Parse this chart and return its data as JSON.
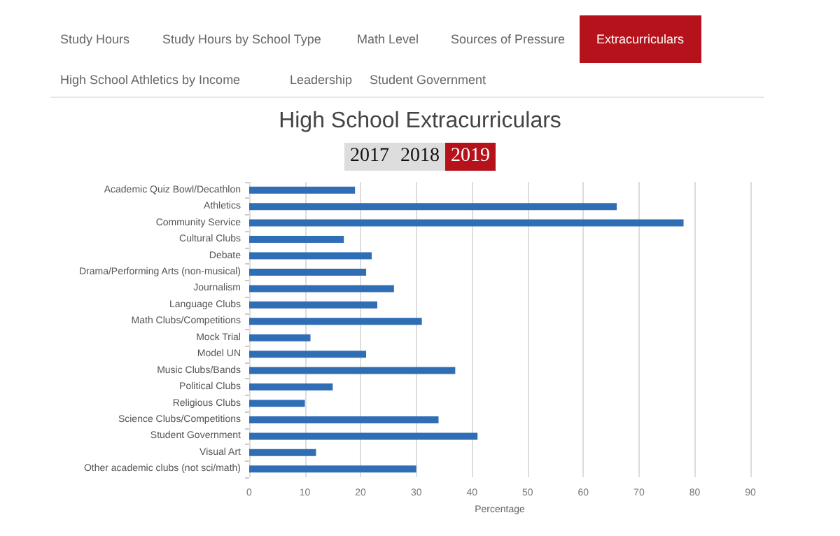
{
  "chart_data": {
    "type": "bar",
    "orientation": "horizontal",
    "title": "High School Extracurriculars",
    "xlabel": "Percentage",
    "annotations": [
      "Study Hours",
      "Study Hours by School Type",
      "Math Level",
      "Sources of Pressure",
      "Extracurriculars",
      "High School Athletics by Income",
      "Leadership",
      "Student Government",
      "2017",
      "2018",
      "2019"
    ],
    "categories": [
      "Academic Quiz Bowl/Decathlon",
      "Athletics",
      "Community Service",
      "Cultural Clubs",
      "Debate",
      "Drama/Performing Arts (non-musical)",
      "Journalism",
      "Language Clubs",
      "Math Clubs/Competitions",
      "Mock Trial",
      "Model UN",
      "Music Clubs/Bands",
      "Political Clubs",
      "Religious Clubs",
      "Science Clubs/Competitions",
      "Student Government",
      "Visual Art",
      "Other academic clubs (not sci/math)"
    ],
    "values": [
      19,
      66,
      78,
      17,
      22,
      21,
      26,
      23,
      31,
      11,
      21,
      37,
      15,
      10,
      34,
      41,
      12,
      30
    ],
    "color": "#2f6db5",
    "xlim": [
      0,
      90
    ],
    "xticks": [
      0,
      10,
      20,
      30,
      40,
      50,
      60,
      70,
      80,
      90
    ],
    "grid": "x"
  }
}
